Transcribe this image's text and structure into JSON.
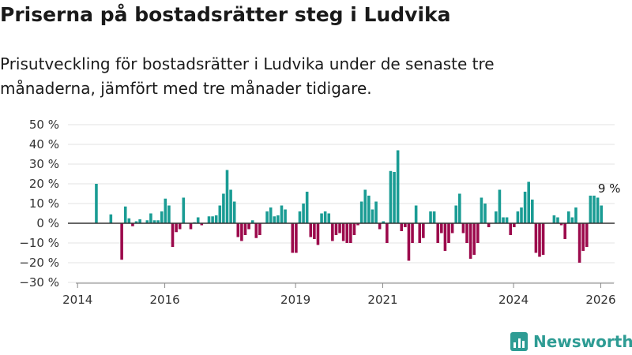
{
  "header": {
    "title": "Priserna på bostadsrätter steg i Ludvika",
    "subtitle": "Prisutveckling för bostadsrätter i Ludvika under de senaste tre månaderna, jämfört med tre månader tidigare."
  },
  "brand": {
    "name": "Newsworthy",
    "icon": "newsworthy-bar-chart-icon"
  },
  "colors": {
    "positive": "#1a9c94",
    "negative": "#9c0a4c",
    "brand": "#2e9c94",
    "zero_line": "#333333",
    "grid": "#e3e3e3"
  },
  "chart_data": {
    "type": "bar",
    "title": "Priserna på bostadsrätter steg i Ludvika",
    "xlabel": "",
    "ylabel": "",
    "ylim": [
      -30,
      50
    ],
    "yticks": [
      50,
      40,
      30,
      20,
      10,
      0,
      -10,
      -20,
      -30
    ],
    "ytick_labels": [
      "50 %",
      "40 %",
      "30 %",
      "20 %",
      "10 %",
      "0 %",
      "−10 %",
      "−20 %",
      "−30 %"
    ],
    "xlim": [
      2013.96,
      2026.3
    ],
    "xticks": [
      2014,
      2016,
      2019,
      2021,
      2024,
      2026
    ],
    "xtick_labels": [
      "2014",
      "2016",
      "2019",
      "2021",
      "2024",
      "2026"
    ],
    "grid": true,
    "annotation": {
      "x": 2026.05,
      "y": 14,
      "text": "9 %"
    },
    "x_start": 2014.43,
    "x_step": 0.0833333,
    "values": [
      20,
      0,
      0,
      0,
      4.5,
      0,
      0,
      -18.5,
      8.5,
      2.5,
      -1.5,
      1,
      2,
      0,
      1.5,
      5,
      1.5,
      1.5,
      6,
      12.5,
      9,
      -12,
      -4.5,
      -3,
      13,
      0,
      -3,
      0.5,
      3,
      -1,
      0,
      3.5,
      3.5,
      4,
      9,
      15,
      27,
      17,
      11,
      -7,
      -9,
      -6,
      -3,
      1.5,
      -7.5,
      -6,
      0,
      6,
      8,
      3.5,
      4,
      9,
      7,
      0,
      -15,
      -15,
      6,
      10,
      16,
      -7,
      -8,
      -11,
      5,
      6,
      5,
      -9,
      -6,
      -5,
      -9,
      -10,
      -10,
      -6,
      -1,
      11,
      17,
      14,
      7,
      11,
      -3,
      1,
      -10,
      26.5,
      26,
      37,
      -4,
      -2,
      -19,
      -10,
      9,
      -10,
      -7.5,
      0,
      6,
      6,
      -10,
      -5,
      -14,
      -10,
      -5,
      9,
      15,
      -5,
      -10,
      -18,
      -16,
      -10,
      13,
      10,
      -2,
      0,
      6,
      17,
      3,
      3,
      -6,
      -2,
      6,
      8,
      16,
      21,
      12,
      -15,
      -17,
      -16,
      0,
      0,
      4,
      3,
      -1,
      -8,
      6,
      3,
      8,
      -20,
      -14,
      -12,
      14,
      14,
      13,
      9
    ]
  }
}
